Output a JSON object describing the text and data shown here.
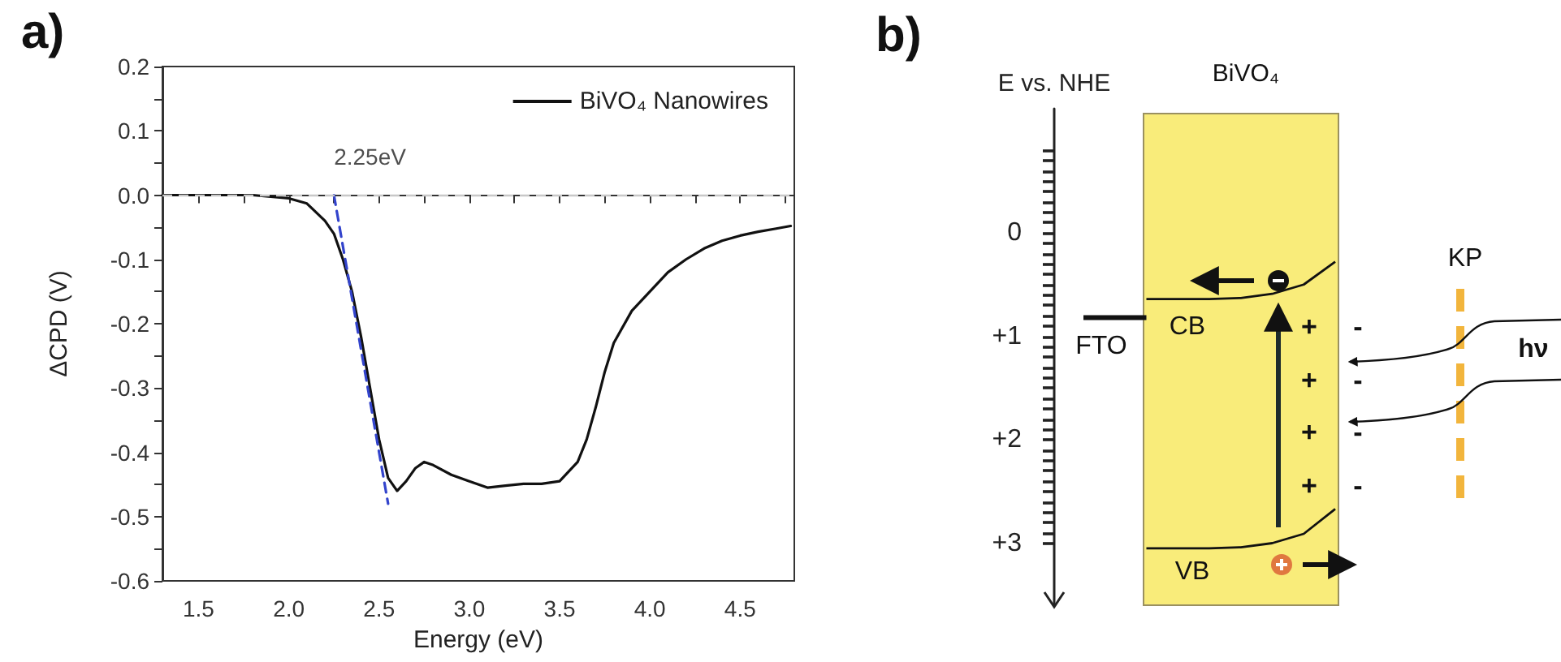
{
  "chart_data": [
    {
      "type": "line",
      "title": "a)",
      "xlabel": "Energy (eV)",
      "ylabel": "ΔCPD (V)",
      "legend": "top right",
      "grid": false,
      "marker": "none",
      "xlim": [
        1.3,
        4.8
      ],
      "ylim": [
        -0.6,
        0.2
      ],
      "xticks": [
        {
          "value": 1.5,
          "label": "1.5"
        },
        {
          "value": 1.75,
          "label": null
        },
        {
          "value": 2,
          "label": "2.0"
        },
        {
          "value": 2.25,
          "label": null
        },
        {
          "value": 2.5,
          "label": "2.5"
        },
        {
          "value": 2.75,
          "label": null
        },
        {
          "value": 3,
          "label": "3.0"
        },
        {
          "value": 3.25,
          "label": null
        },
        {
          "value": 3.5,
          "label": "3.5"
        },
        {
          "value": 3.75,
          "label": null
        },
        {
          "value": 4,
          "label": "4.0"
        },
        {
          "value": 4.25,
          "label": null
        },
        {
          "value": 4.5,
          "label": "4.5"
        },
        {
          "value": 4.75,
          "label": null
        }
      ],
      "yticks": [
        {
          "value": -0.6,
          "label": "-0.6"
        },
        {
          "value": -0.55,
          "label": null
        },
        {
          "value": -0.5,
          "label": "-0.5"
        },
        {
          "value": -0.45,
          "label": null
        },
        {
          "value": -0.4,
          "label": "-0.4"
        },
        {
          "value": -0.35,
          "label": null
        },
        {
          "value": -0.3,
          "label": "-0.3"
        },
        {
          "value": -0.25,
          "label": null
        },
        {
          "value": -0.2,
          "label": "-0.2"
        },
        {
          "value": -0.15,
          "label": null
        },
        {
          "value": -0.1,
          "label": "-0.1"
        },
        {
          "value": -0.05,
          "label": null
        },
        {
          "value": 0,
          "label": "0.0"
        },
        {
          "value": 0.05,
          "label": null
        },
        {
          "value": 0.1,
          "label": "0.1"
        },
        {
          "value": 0.15,
          "label": null
        },
        {
          "value": 0.2,
          "label": "0.2"
        }
      ],
      "ref_lines": [
        {
          "axis": "y",
          "value": 0,
          "color": "#c8c8c8",
          "line_style": "dashed"
        }
      ],
      "annotations": [
        {
          "text": "2.25eV",
          "x": 2.25,
          "y": 0
        }
      ],
      "series": [
        {
          "name": "BiVO₄ Nanowires",
          "color": "#111111",
          "line_style": "solid",
          "x": [
            1.3,
            1.5,
            1.8,
            2.0,
            2.1,
            2.2,
            2.25,
            2.3,
            2.35,
            2.4,
            2.45,
            2.5,
            2.55,
            2.6,
            2.65,
            2.7,
            2.75,
            2.8,
            2.9,
            3.0,
            3.1,
            3.2,
            3.3,
            3.4,
            3.5,
            3.6,
            3.65,
            3.7,
            3.75,
            3.8,
            3.9,
            4.0,
            4.1,
            4.2,
            4.3,
            4.4,
            4.5,
            4.6,
            4.7,
            4.78
          ],
          "values": [
            0.0,
            0.0,
            0.0,
            -0.005,
            -0.013,
            -0.04,
            -0.06,
            -0.1,
            -0.15,
            -0.22,
            -0.3,
            -0.38,
            -0.44,
            -0.46,
            -0.445,
            -0.425,
            -0.415,
            -0.42,
            -0.435,
            -0.445,
            -0.455,
            -0.452,
            -0.449,
            -0.449,
            -0.445,
            -0.415,
            -0.38,
            -0.33,
            -0.275,
            -0.23,
            -0.18,
            -0.15,
            -0.12,
            -0.1,
            -0.083,
            -0.071,
            -0.063,
            -0.057,
            -0.052,
            -0.048
          ]
        },
        {
          "type": "line",
          "color": "#3344cc",
          "line_style": "dashed",
          "x": [
            2.25,
            2.55
          ],
          "values": [
            0.0,
            -0.48
          ]
        }
      ]
    },
    {
      "type": "line",
      "title": "b)",
      "ylabel": "E vs. NHE",
      "ylim": [
        3.6,
        -1.2
      ],
      "tick_labels": "y",
      "marker": "none",
      "yticks": [
        {
          "value": -0.8,
          "label": null
        },
        {
          "value": -0.7,
          "label": null
        },
        {
          "value": -0.6,
          "label": null
        },
        {
          "value": -0.5,
          "label": null
        },
        {
          "value": -0.4,
          "label": null
        },
        {
          "value": -0.3,
          "label": null
        },
        {
          "value": -0.2,
          "label": null
        },
        {
          "value": -0.1,
          "label": null
        },
        {
          "value": 0,
          "label": "0"
        },
        {
          "value": 0.1,
          "label": null
        },
        {
          "value": 0.2,
          "label": null
        },
        {
          "value": 0.3,
          "label": null
        },
        {
          "value": 0.4,
          "label": null
        },
        {
          "value": 0.5,
          "label": null
        },
        {
          "value": 0.6,
          "label": null
        },
        {
          "value": 0.7,
          "label": null
        },
        {
          "value": 0.8,
          "label": null
        },
        {
          "value": 0.9,
          "label": null
        },
        {
          "value": 1,
          "label": "+1"
        },
        {
          "value": 1.1,
          "label": null
        },
        {
          "value": 1.2,
          "label": null
        },
        {
          "value": 1.3,
          "label": null
        },
        {
          "value": 1.4,
          "label": null
        },
        {
          "value": 1.5,
          "label": null
        },
        {
          "value": 1.6,
          "label": null
        },
        {
          "value": 1.7,
          "label": null
        },
        {
          "value": 1.8,
          "label": null
        },
        {
          "value": 1.9,
          "label": null
        },
        {
          "value": 2,
          "label": "+2"
        },
        {
          "value": 2.1,
          "label": null
        },
        {
          "value": 2.2,
          "label": null
        },
        {
          "value": 2.3,
          "label": null
        },
        {
          "value": 2.4,
          "label": null
        },
        {
          "value": 2.5,
          "label": null
        },
        {
          "value": 2.6,
          "label": null
        },
        {
          "value": 2.7,
          "label": null
        },
        {
          "value": 2.8,
          "label": null
        },
        {
          "value": 2.9,
          "label": null
        },
        {
          "value": 3,
          "label": "+3"
        }
      ],
      "categories": [
        null,
        null,
        null,
        null,
        null,
        null,
        null,
        null,
        null
      ],
      "series": [
        {
          "name": "FTO",
          "color": "#111111",
          "values": [
            0.82,
            0.82,
            0.82,
            null,
            null,
            null,
            null,
            null,
            null
          ]
        },
        {
          "name": "CB",
          "color": "#111111",
          "values": [
            null,
            null,
            0.64,
            0.64,
            0.64,
            0.63,
            0.59,
            0.5,
            0.28
          ]
        },
        {
          "name": "VB",
          "color": "#111111",
          "values": [
            null,
            null,
            3.05,
            3.05,
            3.05,
            3.04,
            3.0,
            2.91,
            2.67
          ]
        }
      ],
      "annotations": [
        "BiVO₄",
        "KP",
        "hν",
        "+",
        "+",
        "+",
        "+",
        "-",
        "-",
        "-",
        "-"
      ]
    }
  ]
}
